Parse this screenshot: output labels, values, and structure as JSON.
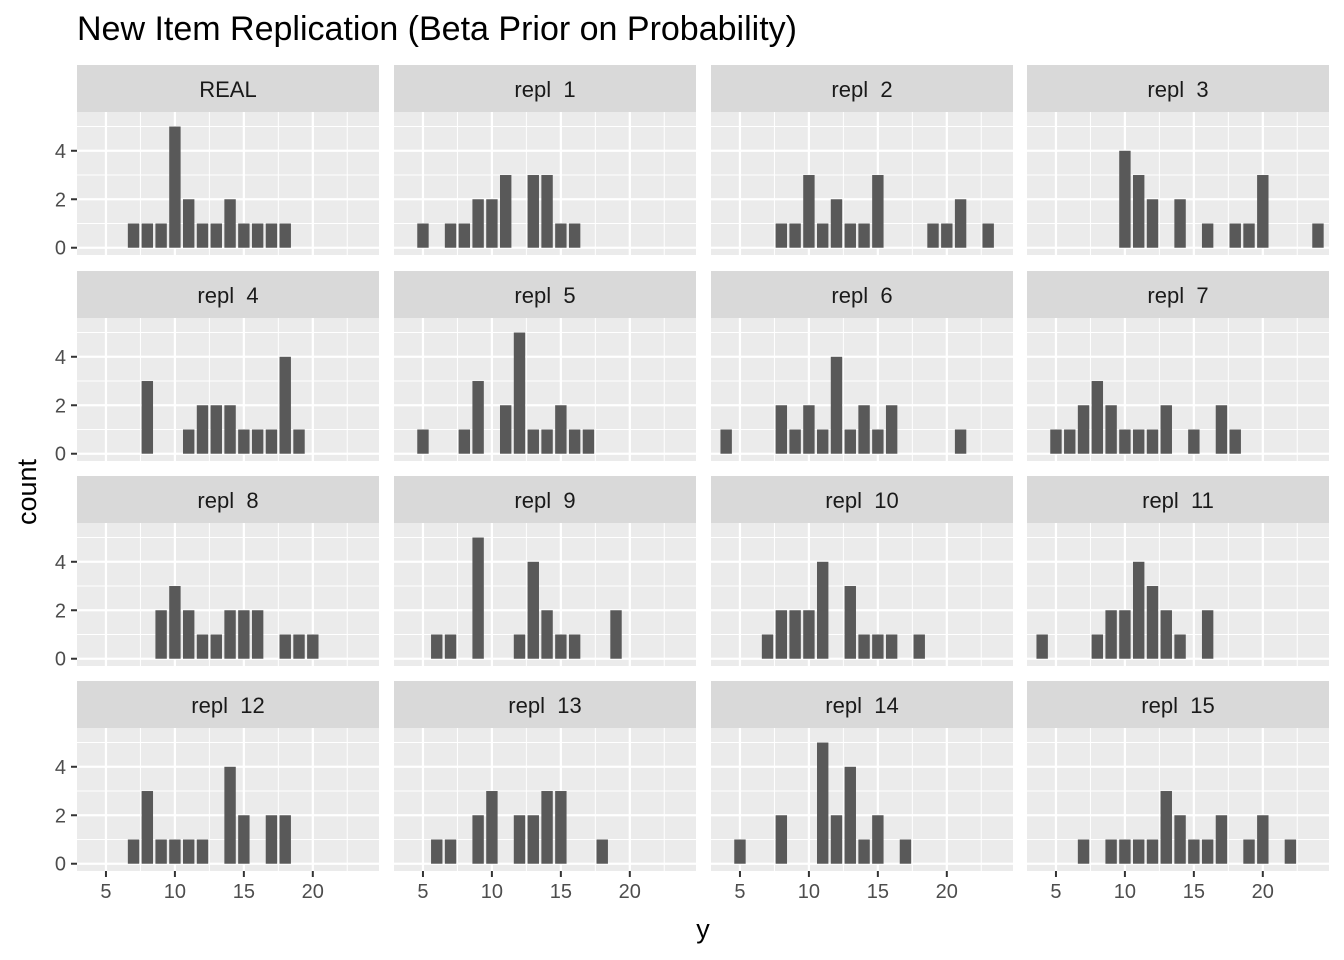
{
  "chart_data": {
    "type": "bar",
    "title": "New Item Replication (Beta Prior on Probability)",
    "xlabel": "y",
    "ylabel": "count",
    "xlim": [
      2.9,
      24.8
    ],
    "ylim": [
      -0.3,
      5.6
    ],
    "x_ticks": [
      5,
      10,
      15,
      20
    ],
    "y_ticks": [
      0,
      2,
      4
    ],
    "grid": true,
    "layout": "facet grid 4 x 4",
    "colors": {
      "bar": "#595959",
      "panel_bg": "#ebebeb",
      "strip_bg": "#d9d9d9",
      "grid": "#ffffff"
    },
    "facets": [
      {
        "label": "REAL",
        "x": [
          7,
          8,
          9,
          10,
          11,
          12,
          13,
          14,
          15,
          16,
          17,
          18
        ],
        "counts": [
          1,
          1,
          1,
          5,
          2,
          1,
          1,
          2,
          1,
          1,
          1,
          1
        ]
      },
      {
        "label": "repl  1",
        "x": [
          5,
          7,
          8,
          9,
          10,
          11,
          13,
          14,
          15,
          16
        ],
        "counts": [
          1,
          1,
          1,
          2,
          2,
          3,
          3,
          3,
          1,
          1
        ]
      },
      {
        "label": "repl  2",
        "x": [
          8,
          9,
          10,
          11,
          12,
          13,
          14,
          15,
          19,
          20,
          21,
          23
        ],
        "counts": [
          1,
          1,
          3,
          1,
          2,
          1,
          1,
          3,
          1,
          1,
          2,
          1
        ]
      },
      {
        "label": "repl  3",
        "x": [
          10,
          11,
          12,
          14,
          16,
          18,
          19,
          20,
          24
        ],
        "counts": [
          4,
          3,
          2,
          2,
          1,
          1,
          1,
          3,
          1
        ]
      },
      {
        "label": "repl  4",
        "x": [
          8,
          11,
          12,
          13,
          14,
          15,
          16,
          17,
          18,
          19
        ],
        "counts": [
          3,
          1,
          2,
          2,
          2,
          1,
          1,
          1,
          4,
          1
        ]
      },
      {
        "label": "repl  5",
        "x": [
          5,
          8,
          9,
          11,
          12,
          13,
          14,
          15,
          16,
          17
        ],
        "counts": [
          1,
          1,
          3,
          2,
          5,
          1,
          1,
          2,
          1,
          1
        ]
      },
      {
        "label": "repl  6",
        "x": [
          4,
          8,
          9,
          10,
          11,
          12,
          13,
          14,
          15,
          16,
          21
        ],
        "counts": [
          1,
          2,
          1,
          2,
          1,
          4,
          1,
          2,
          1,
          2,
          1
        ]
      },
      {
        "label": "repl  7",
        "x": [
          5,
          6,
          7,
          8,
          9,
          10,
          11,
          12,
          13,
          15,
          17,
          18
        ],
        "counts": [
          1,
          1,
          2,
          3,
          2,
          1,
          1,
          1,
          2,
          1,
          2,
          1
        ]
      },
      {
        "label": "repl  8",
        "x": [
          9,
          10,
          11,
          12,
          13,
          14,
          15,
          16,
          18,
          19,
          20
        ],
        "counts": [
          2,
          3,
          2,
          1,
          1,
          2,
          2,
          2,
          1,
          1,
          1
        ]
      },
      {
        "label": "repl  9",
        "x": [
          6,
          7,
          9,
          12,
          13,
          14,
          15,
          16,
          19
        ],
        "counts": [
          1,
          1,
          5,
          1,
          4,
          2,
          1,
          1,
          2
        ]
      },
      {
        "label": "repl  10",
        "x": [
          7,
          8,
          9,
          10,
          11,
          13,
          14,
          15,
          16,
          18
        ],
        "counts": [
          1,
          2,
          2,
          2,
          4,
          3,
          1,
          1,
          1,
          1
        ]
      },
      {
        "label": "repl  11",
        "x": [
          4,
          8,
          9,
          10,
          11,
          12,
          13,
          14,
          16
        ],
        "counts": [
          1,
          1,
          2,
          2,
          4,
          3,
          2,
          1,
          2
        ]
      },
      {
        "label": "repl  12",
        "x": [
          7,
          8,
          9,
          10,
          11,
          12,
          14,
          15,
          17,
          18
        ],
        "counts": [
          1,
          3,
          1,
          1,
          1,
          1,
          4,
          2,
          2,
          2
        ]
      },
      {
        "label": "repl  13",
        "x": [
          6,
          7,
          9,
          10,
          12,
          13,
          14,
          15,
          18
        ],
        "counts": [
          1,
          1,
          2,
          3,
          2,
          2,
          3,
          3,
          1
        ]
      },
      {
        "label": "repl  14",
        "x": [
          5,
          8,
          11,
          12,
          13,
          14,
          15,
          17
        ],
        "counts": [
          1,
          2,
          5,
          2,
          4,
          1,
          2,
          1
        ]
      },
      {
        "label": "repl  15",
        "x": [
          7,
          9,
          10,
          11,
          12,
          13,
          14,
          15,
          16,
          17,
          19,
          20,
          22
        ],
        "counts": [
          1,
          1,
          1,
          1,
          1,
          3,
          2,
          1,
          1,
          2,
          1,
          2,
          1
        ]
      }
    ]
  }
}
